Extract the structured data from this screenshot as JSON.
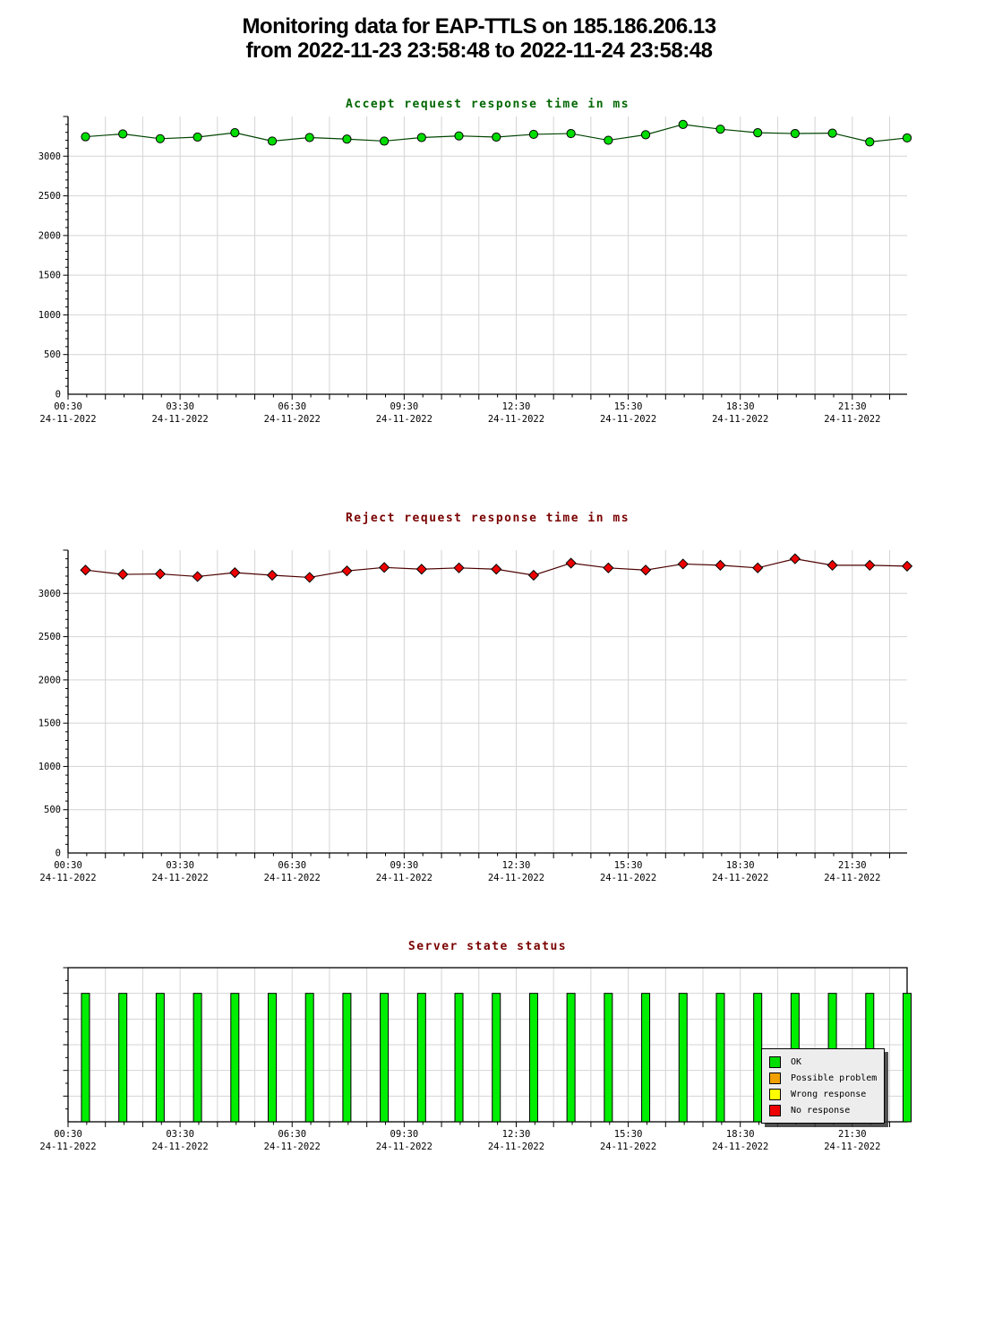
{
  "page": {
    "title_line1": "Monitoring data for EAP-TTLS on 185.186.206.13",
    "title_line2": "from 2022-11-23 23:58:48 to 2022-11-24 23:58:48"
  },
  "axis": {
    "x_tick_labels": [
      "00:30",
      "03:30",
      "06:30",
      "09:30",
      "12:30",
      "15:30",
      "18:30",
      "21:30"
    ],
    "x_tick_hours": [
      0,
      3,
      6,
      9,
      12,
      15,
      18,
      21
    ],
    "x_date": "24-11-2022",
    "grid_color": "#d4d4d4",
    "axis_color": "#000000"
  },
  "chart_data": [
    {
      "type": "line",
      "title": "Accept request response time in ms",
      "title_color": "#006600",
      "line_color": "#004400",
      "marker": "circle",
      "marker_color": "#00dd00",
      "x": [
        "00:58",
        "01:58",
        "02:58",
        "03:58",
        "04:58",
        "05:58",
        "06:58",
        "07:58",
        "08:58",
        "09:58",
        "10:58",
        "11:58",
        "12:58",
        "13:58",
        "14:58",
        "15:58",
        "16:58",
        "17:58",
        "18:58",
        "19:58",
        "20:58",
        "21:58",
        "22:58"
      ],
      "values": [
        3245,
        3280,
        3220,
        3240,
        3295,
        3190,
        3235,
        3215,
        3190,
        3235,
        3255,
        3240,
        3275,
        3285,
        3200,
        3270,
        3400,
        3340,
        3295,
        3285,
        3290,
        3180,
        3230
      ],
      "ylim": [
        0,
        3500
      ],
      "y_ticks": [
        0,
        500,
        1000,
        1500,
        2000,
        2500,
        3000
      ],
      "grid_values": [
        500,
        1000,
        1500,
        2000,
        2500,
        3000
      ],
      "y_minor_step": 100,
      "y_major_step": 500,
      "grid": true,
      "legend": []
    },
    {
      "type": "line",
      "title": "Reject request response time in ms",
      "title_color": "#7a0000",
      "line_color": "#4d0000",
      "marker": "diamond",
      "marker_color": "#ee0000",
      "x": [
        "00:58",
        "01:58",
        "02:58",
        "03:58",
        "04:58",
        "05:58",
        "06:58",
        "07:58",
        "08:58",
        "09:58",
        "10:58",
        "11:58",
        "12:58",
        "13:58",
        "14:58",
        "15:58",
        "16:58",
        "17:58",
        "18:58",
        "19:58",
        "20:58",
        "21:58",
        "22:58"
      ],
      "values": [
        3270,
        3220,
        3225,
        3195,
        3240,
        3210,
        3185,
        3260,
        3300,
        3280,
        3295,
        3280,
        3210,
        3350,
        3295,
        3270,
        3340,
        3325,
        3295,
        3400,
        3325,
        3325,
        3315
      ],
      "ylim": [
        0,
        3500
      ],
      "y_ticks": [
        0,
        500,
        1000,
        1500,
        2000,
        2500,
        3000
      ],
      "grid_values": [
        500,
        1000,
        1500,
        2000,
        2500,
        3000
      ],
      "y_minor_step": 100,
      "y_major_step": 500,
      "grid": true,
      "legend": []
    },
    {
      "type": "bar",
      "title": "Server state status",
      "title_color": "#7a0000",
      "bar_color": "#00ee00",
      "x": [
        "00:58",
        "01:58",
        "02:58",
        "03:58",
        "04:58",
        "05:58",
        "06:58",
        "07:58",
        "08:58",
        "09:58",
        "10:58",
        "11:58",
        "12:58",
        "13:58",
        "14:58",
        "15:58",
        "16:58",
        "17:58",
        "18:58",
        "19:58",
        "20:58",
        "21:58",
        "22:58"
      ],
      "values": [
        100,
        100,
        100,
        100,
        100,
        100,
        100,
        100,
        100,
        100,
        100,
        100,
        100,
        100,
        100,
        100,
        100,
        100,
        100,
        100,
        100,
        100,
        100
      ],
      "states": [
        "OK",
        "OK",
        "OK",
        "OK",
        "OK",
        "OK",
        "OK",
        "OK",
        "OK",
        "OK",
        "OK",
        "OK",
        "OK",
        "OK",
        "OK",
        "OK",
        "OK",
        "OK",
        "OK",
        "OK",
        "OK",
        "OK",
        "OK"
      ],
      "ylim": [
        0,
        120
      ],
      "y_ticks": [],
      "grid_values": [
        20,
        40,
        60,
        80,
        100
      ],
      "y_minor_step": 10,
      "y_major_step": 20,
      "grid": true,
      "legend": [
        {
          "label": "OK",
          "color": "#00dd00"
        },
        {
          "label": "Possible problem",
          "color": "#f0a000"
        },
        {
          "label": "Wrong response",
          "color": "#ffff00"
        },
        {
          "label": "No response",
          "color": "#ee0000"
        }
      ],
      "legend_position": "right-inside"
    }
  ]
}
